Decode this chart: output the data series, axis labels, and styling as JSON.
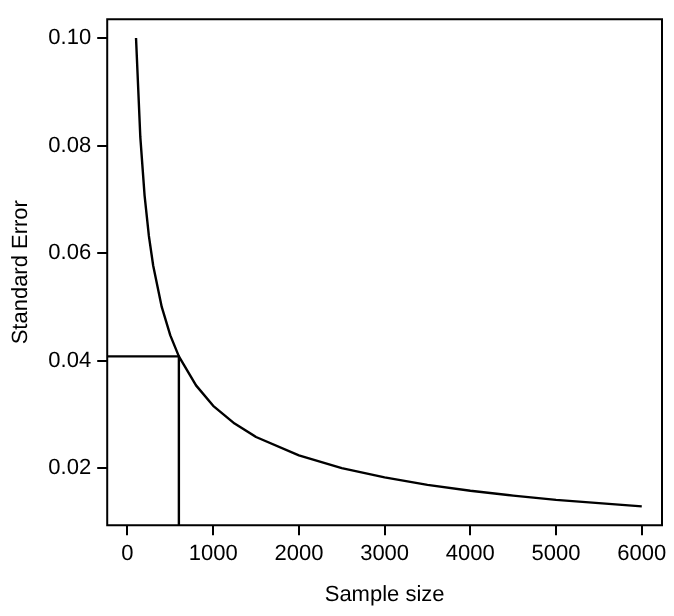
{
  "chart_data": {
    "type": "line",
    "xlabel": "Sample size",
    "ylabel": "Standard Error",
    "xlim": [
      -236,
      6236
    ],
    "xticks": [
      0,
      1000,
      2000,
      3000,
      4000,
      5000,
      6000
    ],
    "ylim": [
      0.0094,
      0.1035
    ],
    "yticks": [
      0.02,
      0.04,
      0.06,
      0.08,
      {
        "value": 0.1,
        "label": "0.10"
      }
    ],
    "series": [
      {
        "color": "#000000",
        "x": [
          100,
          150,
          200,
          250,
          300,
          400,
          500,
          600,
          800,
          1000,
          1250,
          1500,
          2000,
          2500,
          3000,
          3500,
          4000,
          4500,
          5000,
          5500,
          6000
        ],
        "values": [
          0.1,
          0.0816,
          0.0707,
          0.0632,
          0.0577,
          0.05,
          0.0447,
          0.0408,
          0.0354,
          0.0316,
          0.0283,
          0.0258,
          0.0224,
          0.02,
          0.0183,
          0.0169,
          0.0158,
          0.0149,
          0.0141,
          0.0135,
          0.0129
        ]
      },
      {
        "color": "#000000",
        "x": [
          -236,
          600,
          600
        ],
        "values": [
          0.0408,
          0.0408,
          0.0094
        ]
      }
    ],
    "marker": "none",
    "line_style": "solid"
  }
}
